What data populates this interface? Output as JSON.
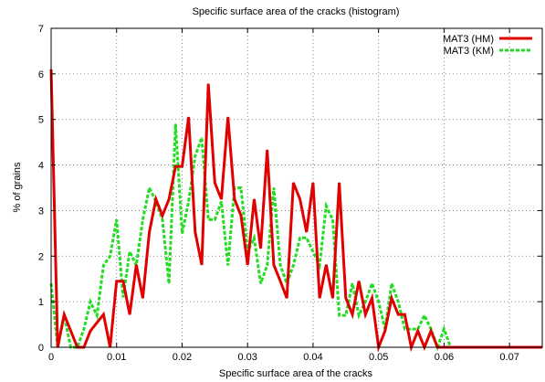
{
  "chart_data": {
    "type": "line",
    "title": "Specific surface area of the cracks (histogram)",
    "xlabel": "Specific surface area of the cracks",
    "ylabel": "% of grains",
    "xlim": [
      0,
      0.075
    ],
    "ylim": [
      0,
      7
    ],
    "xticks": [
      0,
      0.01,
      0.02,
      0.03,
      0.04,
      0.05,
      0.06,
      0.07
    ],
    "xtick_labels": [
      "0",
      "0.01",
      "0.02",
      "0.03",
      "0.04",
      "0.05",
      "0.06",
      "0.07"
    ],
    "yticks": [
      0,
      1,
      2,
      3,
      4,
      5,
      6,
      7
    ],
    "ytick_labels": [
      "0",
      "1",
      "2",
      "3",
      "4",
      "5",
      "6",
      "7"
    ],
    "grid": true,
    "legend_position": "top-right",
    "series": [
      {
        "name": "MAT3 (HM)",
        "color": "#e00000",
        "style": "solid",
        "x": [
          0,
          0.001,
          0.002,
          0.003,
          0.004,
          0.005,
          0.006,
          0.007,
          0.008,
          0.009,
          0.01,
          0.011,
          0.012,
          0.013,
          0.014,
          0.015,
          0.016,
          0.017,
          0.018,
          0.019,
          0.02,
          0.021,
          0.022,
          0.023,
          0.024,
          0.025,
          0.026,
          0.027,
          0.028,
          0.029,
          0.03,
          0.031,
          0.032,
          0.033,
          0.034,
          0.035,
          0.036,
          0.037,
          0.038,
          0.039,
          0.04,
          0.041,
          0.042,
          0.043,
          0.044,
          0.045,
          0.046,
          0.047,
          0.048,
          0.049,
          0.05,
          0.051,
          0.052,
          0.053,
          0.054,
          0.055,
          0.056,
          0.057,
          0.058,
          0.059,
          0.06,
          0.061,
          0.062,
          0.063,
          0.064,
          0.065,
          0.066,
          0.067,
          0.068,
          0.069,
          0.07,
          0.071,
          0.072,
          0.073,
          0.074,
          0.075
        ],
        "values": [
          6.1,
          0.0,
          0.72,
          0.36,
          0.0,
          0.0,
          0.36,
          0.54,
          0.72,
          0.0,
          1.45,
          1.45,
          0.72,
          1.81,
          1.08,
          2.53,
          3.25,
          2.89,
          3.25,
          3.97,
          3.97,
          5.05,
          2.53,
          1.81,
          5.78,
          3.61,
          3.25,
          5.05,
          3.25,
          2.89,
          1.81,
          3.25,
          2.17,
          4.33,
          1.81,
          1.45,
          1.08,
          3.61,
          3.25,
          2.53,
          3.61,
          1.08,
          1.81,
          1.08,
          3.61,
          1.08,
          0.72,
          1.45,
          0.72,
          1.08,
          0.0,
          0.36,
          1.08,
          0.72,
          0.72,
          0.0,
          0.36,
          0.0,
          0.36,
          0.0,
          0.0,
          0.0,
          0.0,
          0.0,
          0.0,
          0.0,
          0.0,
          0.0,
          0.0,
          0.0,
          0.0,
          0.0,
          0.0,
          0.0,
          0.0,
          0.0
        ]
      },
      {
        "name": "MAT3 (KM)",
        "color": "#22dd22",
        "style": "dashed",
        "x": [
          0,
          0.001,
          0.002,
          0.003,
          0.004,
          0.005,
          0.006,
          0.007,
          0.008,
          0.009,
          0.01,
          0.011,
          0.012,
          0.013,
          0.014,
          0.015,
          0.016,
          0.017,
          0.018,
          0.019,
          0.02,
          0.021,
          0.022,
          0.023,
          0.024,
          0.025,
          0.026,
          0.027,
          0.028,
          0.029,
          0.03,
          0.031,
          0.032,
          0.033,
          0.034,
          0.035,
          0.036,
          0.037,
          0.038,
          0.039,
          0.04,
          0.041,
          0.042,
          0.043,
          0.044,
          0.045,
          0.046,
          0.047,
          0.048,
          0.049,
          0.05,
          0.051,
          0.052,
          0.053,
          0.054,
          0.055,
          0.056,
          0.057,
          0.058,
          0.059,
          0.06,
          0.061,
          0.062,
          0.063,
          0.064,
          0.065,
          0.066,
          0.067,
          0.068,
          0.069,
          0.07,
          0.071,
          0.072,
          0.073,
          0.074,
          0.075
        ],
        "values": [
          1.4,
          0.0,
          0.7,
          0.0,
          0.0,
          0.4,
          1.0,
          0.7,
          1.8,
          2.0,
          2.8,
          1.1,
          2.1,
          1.8,
          2.8,
          3.5,
          3.2,
          2.8,
          1.4,
          4.9,
          2.5,
          3.2,
          4.2,
          4.6,
          2.8,
          2.8,
          3.2,
          1.8,
          3.5,
          3.5,
          2.1,
          2.4,
          1.4,
          1.8,
          3.5,
          1.8,
          1.4,
          1.8,
          2.4,
          2.4,
          2.1,
          1.8,
          3.1,
          2.8,
          0.7,
          0.7,
          1.4,
          0.7,
          1.0,
          1.4,
          1.0,
          0.4,
          1.4,
          1.0,
          0.4,
          0.4,
          0.4,
          0.7,
          0.4,
          0.0,
          0.4,
          0.0,
          0.0,
          0.0,
          0.0,
          0.0,
          0.0,
          0.0,
          0.0,
          0.0,
          0.0,
          0.0,
          0.0,
          0.0,
          0.0,
          0.0
        ]
      }
    ]
  }
}
